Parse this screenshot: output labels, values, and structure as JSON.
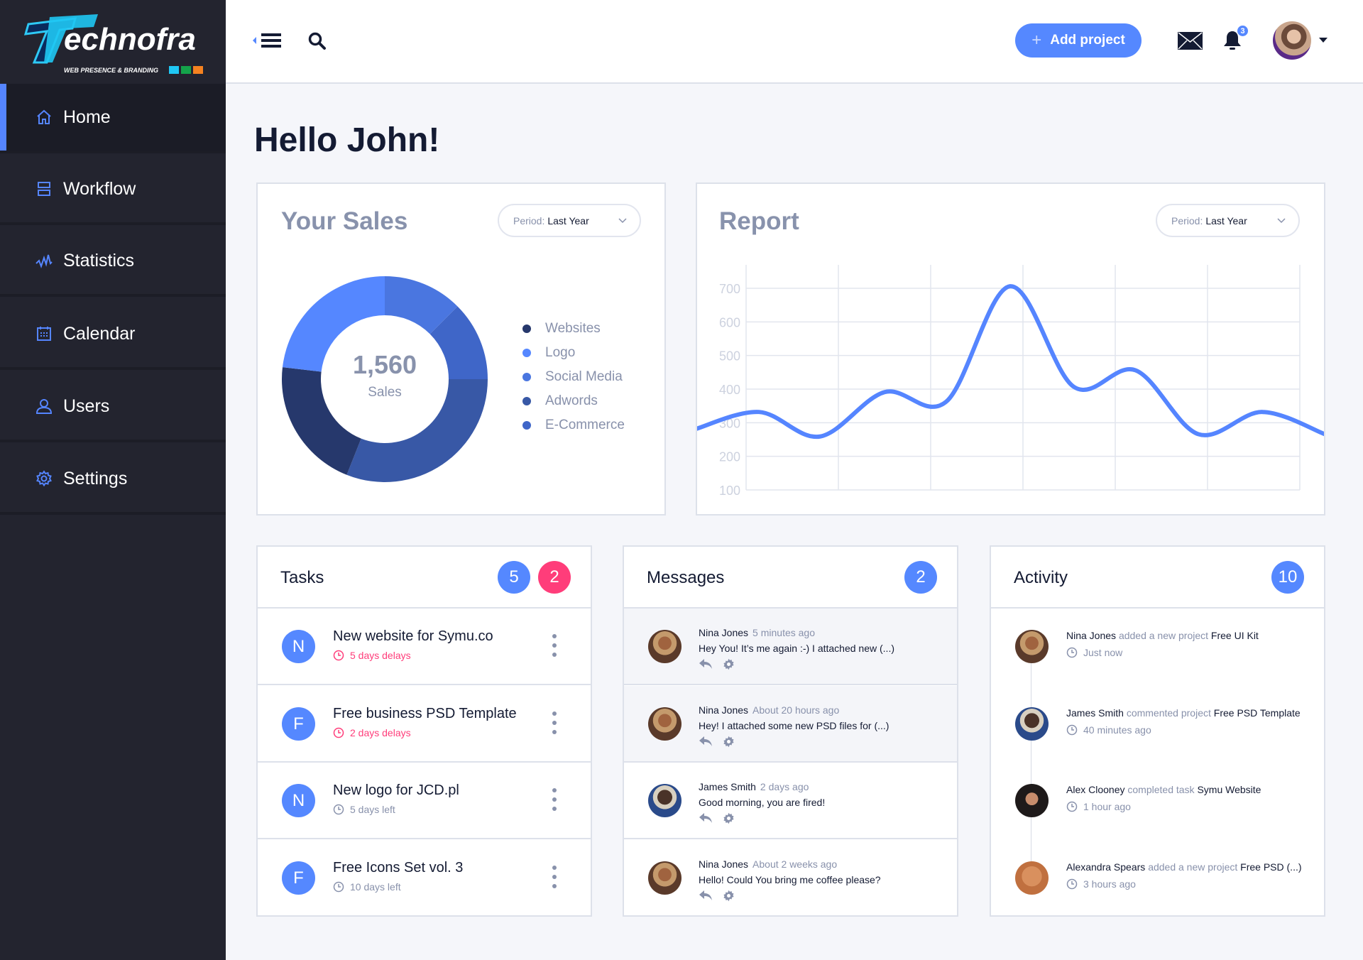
{
  "brand": {
    "logo_text": "Technofra",
    "logo_tagline": "WEB PRESENCE & BRANDING"
  },
  "sidebar": {
    "items": [
      {
        "label": "Home",
        "icon": "home-icon",
        "active": true
      },
      {
        "label": "Workflow",
        "icon": "workflow-icon"
      },
      {
        "label": "Statistics",
        "icon": "statistics-icon"
      },
      {
        "label": "Calendar",
        "icon": "calendar-icon"
      },
      {
        "label": "Users",
        "icon": "user-icon"
      },
      {
        "label": "Settings",
        "icon": "gear-icon"
      }
    ]
  },
  "header": {
    "add_project": "Add project",
    "add_icon": "+",
    "notifications_count": "3"
  },
  "greeting": "Hello John!",
  "sales": {
    "title": "Your Sales",
    "period_label": "Period:",
    "period_value": "Last Year",
    "total": "1,560",
    "total_label": "Sales"
  },
  "report": {
    "title": "Report",
    "period_label": "Period:",
    "period_value": "Last Year"
  },
  "chart_data": [
    {
      "type": "pie",
      "donut": true,
      "title": "Your Sales",
      "center_value": 1560,
      "slices": [
        {
          "name": "Social Media",
          "value": 195,
          "color": "#4a76e0"
        },
        {
          "name": "E-Commerce",
          "value": 195,
          "color": "#3f66c8"
        },
        {
          "name": "Adwords",
          "value": 484,
          "color": "#3858a6"
        },
        {
          "name": "Websites",
          "value": 325,
          "color": "#26386c"
        },
        {
          "name": "Logo",
          "value": 361,
          "color": "#5587ff"
        }
      ],
      "legend": [
        "Websites",
        "Logo",
        "Social Media",
        "Adwords",
        "E-Commerce"
      ],
      "legend_colors": [
        "#26386c",
        "#5587ff",
        "#4a76e0",
        "#3858a6",
        "#3f66c8"
      ],
      "legend_placement": "right"
    },
    {
      "type": "line",
      "title": "Report",
      "smooth": true,
      "grid": true,
      "color": "#5585ff",
      "yticks": [
        100,
        200,
        300,
        400,
        500,
        600,
        700
      ],
      "ylim": [
        100,
        700
      ],
      "x": [
        -0.55,
        0.14,
        0.8,
        1.5,
        2.17,
        2.86,
        3.55,
        4.22,
        4.9,
        5.59,
        6.27
      ],
      "y": [
        281,
        332,
        259,
        391,
        363,
        706,
        407,
        456,
        266,
        332,
        266
      ]
    }
  ],
  "tasks": {
    "title": "Tasks",
    "count_blue": "5",
    "count_red": "2",
    "items": [
      {
        "initial": "N",
        "title": "New website for Symu.co",
        "due": "5 days delays",
        "late": true
      },
      {
        "initial": "F",
        "title": "Free business PSD Template",
        "due": "2 days delays",
        "late": true
      },
      {
        "initial": "N",
        "title": "New logo for JCD.pl",
        "due": "5 days left",
        "late": false
      },
      {
        "initial": "F",
        "title": "Free Icons Set vol. 3",
        "due": "10 days left",
        "late": false
      }
    ]
  },
  "messages": {
    "title": "Messages",
    "count": "2",
    "items": [
      {
        "name": "Nina Jones",
        "time": "5 minutes ago",
        "text": "Hey You! It’s me again :-) I attached new (...)",
        "unread": true
      },
      {
        "name": "Nina Jones",
        "time": "About 20 hours ago",
        "text": "Hey! I attached some new PSD files for (...)",
        "unread": true
      },
      {
        "name": "James Smith",
        "time": "2 days ago",
        "text": "Good morning, you are fired!",
        "unread": false
      },
      {
        "name": "Nina Jones",
        "time": "About 2 weeks ago",
        "text": "Hello! Could You bring me coffee please?",
        "unread": false
      }
    ]
  },
  "activity": {
    "title": "Activity",
    "count": "10",
    "items": [
      {
        "name": "Nina Jones",
        "action": "added a new project",
        "target": "Free UI Kit",
        "time": "Just now"
      },
      {
        "name": "James Smith",
        "action": "commented project",
        "target": "Free PSD Template",
        "time": "40 minutes ago"
      },
      {
        "name": "Alex Clooney",
        "action": "completed task",
        "target": "Symu Website",
        "time": "1 hour ago"
      },
      {
        "name": "Alexandra Spears",
        "action": "added a new project",
        "target": "Free PSD (...)",
        "time": "3 hours ago"
      }
    ]
  },
  "colors": {
    "accent": "#5588ff",
    "danger": "#ff3d7a",
    "sidebar": "#23242f",
    "muted": "#8891ab"
  }
}
